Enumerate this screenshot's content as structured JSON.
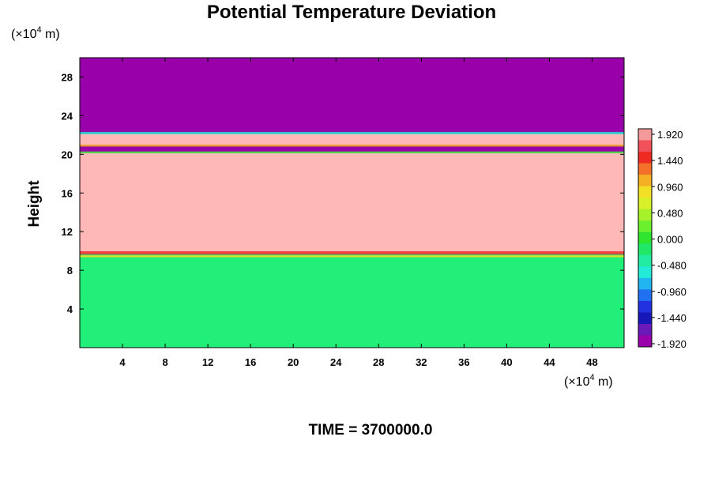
{
  "chart_data": {
    "type": "heatmap",
    "title": "Potential Temperature Deviation",
    "ylabel": "Height",
    "xlabel": "",
    "x_unit": {
      "prefix": "(×10",
      "exp": "4",
      "suffix": " m)"
    },
    "y_unit": {
      "prefix": "(×10",
      "exp": "4",
      "suffix": " m)"
    },
    "xlim": [
      0,
      51
    ],
    "ylim": [
      0,
      30
    ],
    "x_ticks": [
      4,
      8,
      12,
      16,
      20,
      24,
      28,
      32,
      36,
      40,
      44,
      48
    ],
    "y_ticks": [
      4,
      8,
      12,
      16,
      20,
      24,
      28
    ],
    "time_label": "TIME = 3700000.0",
    "colorbar": {
      "labels": [
        "1.920",
        "1.440",
        "0.960",
        "0.480",
        "0.000",
        "-0.480",
        "-0.960",
        "-1.440",
        "-1.920"
      ],
      "colors": [
        "#f59a9a",
        "#f2505a",
        "#ee2b22",
        "#f2702a",
        "#f6b024",
        "#f2e024",
        "#d8f02a",
        "#a8f02a",
        "#6cf02e",
        "#2ee42e",
        "#22e86a",
        "#22eca2",
        "#22ecd8",
        "#20b4f0",
        "#2070f0",
        "#2232e0",
        "#1818b8",
        "#6a1ab8",
        "#9a00aa"
      ]
    },
    "regions": [
      {
        "name": "upper layer",
        "y_from": 22.2,
        "y_to": 30,
        "value": -1.92,
        "color": "#9a00aa"
      },
      {
        "name": "pale band upper",
        "y_from": 20.9,
        "y_to": 22.2,
        "value": 1.92,
        "color": "#ffb8b8"
      },
      {
        "name": "thin dark band",
        "y_from": 20.2,
        "y_to": 20.9,
        "value": -1.92,
        "color": "#9a00aa"
      },
      {
        "name": "middle layer",
        "y_from": 9.8,
        "y_to": 20.2,
        "value": 1.92,
        "color": "#ffb8b8"
      },
      {
        "name": "lower layer",
        "y_from": 0,
        "y_to": 9.8,
        "value": -0.2,
        "color": "#22ee7a"
      }
    ]
  }
}
